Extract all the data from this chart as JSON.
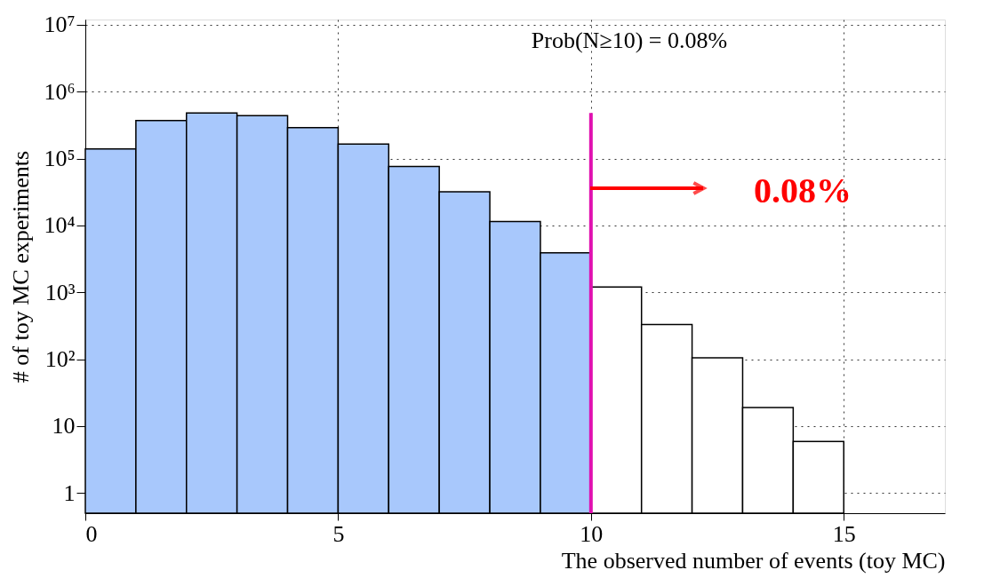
{
  "chart_data": {
    "type": "histogram",
    "xlabel": "The observed number of events (toy MC)",
    "ylabel": "# of toy MC experiments",
    "bins": [
      0,
      1,
      2,
      3,
      4,
      5,
      6,
      7,
      8,
      9,
      10,
      11,
      12,
      13,
      14,
      15
    ],
    "values": [
      140000,
      370000,
      480000,
      440000,
      290000,
      165000,
      76000,
      32000,
      11500,
      3900,
      1200,
      330,
      105,
      19,
      5.9
    ],
    "colors": [
      "#a8c8fc",
      "#a8c8fc",
      "#a8c8fc",
      "#a8c8fc",
      "#a8c8fc",
      "#a8c8fc",
      "#a8c8fc",
      "#a8c8fc",
      "#a8c8fc",
      "#a8c8fc",
      "#ffffff",
      "#ffffff",
      "#ffffff",
      "#ffffff",
      "#ffffff"
    ],
    "log": "y",
    "grid": true,
    "xlim": [
      0,
      17
    ],
    "xticks": [
      0,
      5,
      10,
      15
    ],
    "ylim": [
      0.5,
      12000000
    ],
    "yticks": [
      1,
      10,
      {
        "value": 100,
        "label": "10²"
      },
      {
        "value": 1000,
        "label": "10³"
      },
      {
        "value": 10000,
        "label": "10⁴"
      },
      {
        "value": 100000,
        "label": "10⁵"
      },
      {
        "value": 1000000,
        "label": "10⁶"
      },
      {
        "value": 10000000,
        "label": "10⁷"
      }
    ],
    "ref_lines": [
      {
        "axis": "x",
        "value": 10,
        "color": "#e010b0"
      }
    ],
    "annotations": [
      "Prob(N≥10) = 0.08%",
      "0.08%"
    ]
  }
}
